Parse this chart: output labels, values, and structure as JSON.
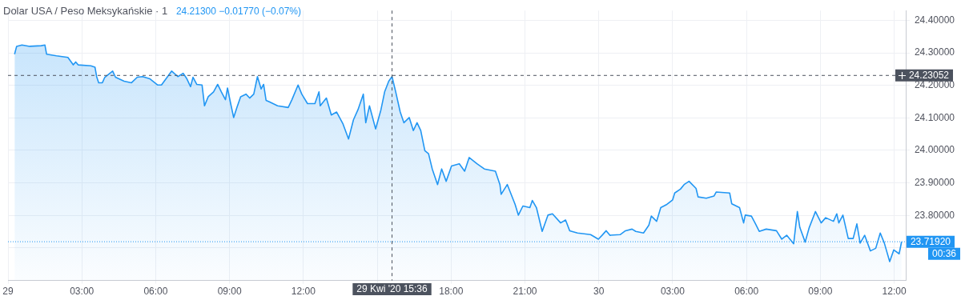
{
  "chart_data": {
    "type": "area",
    "title": "Dolar USA / Peso Meksykańskie · 1",
    "subtitle": "24.21300 −0.01770 (−0.07%)",
    "series": [
      {
        "color": "#2196f3",
        "x": [
          "2020-04-29T00:16",
          "2020-04-29T00:21",
          "2020-04-29T00:34",
          "2020-04-29T00:53",
          "2020-04-29T01:21",
          "2020-04-29T01:30",
          "2020-04-29T01:34",
          "2020-04-29T01:58",
          "2020-04-29T02:26",
          "2020-04-29T02:39",
          "2020-04-29T02:45",
          "2020-04-29T02:51",
          "2020-04-29T03:22",
          "2020-04-29T03:32",
          "2020-04-29T03:36",
          "2020-04-29T03:41",
          "2020-04-29T03:50",
          "2020-04-29T03:56",
          "2020-04-29T04:15",
          "2020-04-29T04:22",
          "2020-04-29T04:43",
          "2020-04-29T05:01",
          "2020-04-29T05:15",
          "2020-04-29T05:28",
          "2020-04-29T05:46",
          "2020-04-29T06:05",
          "2020-04-29T06:14",
          "2020-04-29T06:29",
          "2020-04-29T06:39",
          "2020-04-29T06:54",
          "2020-04-29T07:07",
          "2020-04-29T07:16",
          "2020-04-29T07:25",
          "2020-04-29T07:31",
          "2020-04-29T07:40",
          "2020-04-29T07:53",
          "2020-04-29T07:59",
          "2020-04-29T08:08",
          "2020-04-29T08:21",
          "2020-04-29T08:31",
          "2020-04-29T08:40",
          "2020-04-29T08:50",
          "2020-04-29T08:55",
          "2020-04-29T09:03",
          "2020-04-29T09:10",
          "2020-04-29T09:18",
          "2020-04-29T09:27",
          "2020-04-29T09:40",
          "2020-04-29T09:49",
          "2020-04-29T09:59",
          "2020-04-29T10:08",
          "2020-04-29T10:17",
          "2020-04-29T10:23",
          "2020-04-29T10:29",
          "2020-04-29T10:38",
          "2020-04-29T10:57",
          "2020-04-29T11:23",
          "2020-04-29T11:32",
          "2020-04-29T11:47",
          "2020-04-29T11:56",
          "2020-04-29T12:10",
          "2020-04-29T12:28",
          "2020-04-29T12:38",
          "2020-04-29T12:41",
          "2020-04-29T12:56",
          "2020-04-29T13:08",
          "2020-04-29T13:21",
          "2020-04-29T13:36",
          "2020-04-29T13:50",
          "2020-04-29T14:02",
          "2020-04-29T14:13",
          "2020-04-29T14:26",
          "2020-04-29T14:32",
          "2020-04-29T14:41",
          "2020-04-29T14:56",
          "2020-04-29T15:09",
          "2020-04-29T15:18",
          "2020-04-29T15:28",
          "2020-04-29T15:36",
          "2020-04-29T15:45",
          "2020-04-29T15:56",
          "2020-04-29T16:05",
          "2020-04-29T16:18",
          "2020-04-29T16:28",
          "2020-04-29T16:37",
          "2020-04-29T16:46",
          "2020-04-29T16:56",
          "2020-04-29T17:05",
          "2020-04-29T17:14",
          "2020-04-29T17:27",
          "2020-04-29T17:37",
          "2020-04-29T17:48",
          "2020-04-29T18:01",
          "2020-04-29T18:20",
          "2020-04-29T18:33",
          "2020-04-29T18:44",
          "2020-04-29T19:03",
          "2020-04-29T19:21",
          "2020-04-29T19:48",
          "2020-04-29T19:59",
          "2020-04-29T20:02",
          "2020-04-29T20:17",
          "2020-04-29T20:36",
          "2020-04-29T20:44",
          "2020-04-29T20:55",
          "2020-04-29T21:12",
          "2020-04-29T21:18",
          "2020-04-29T21:28",
          "2020-04-29T21:42",
          "2020-04-29T21:56",
          "2020-04-29T22:07",
          "2020-04-29T22:27",
          "2020-04-29T22:39",
          "2020-04-29T22:49",
          "2020-04-29T23:08",
          "2020-04-29T23:40",
          "2020-04-29T23:59",
          "2020-04-30T00:08",
          "2020-04-30T00:18",
          "2020-04-30T00:27",
          "2020-04-30T00:52",
          "2020-04-30T01:05",
          "2020-04-30T01:21",
          "2020-04-30T01:30",
          "2020-04-30T01:49",
          "2020-04-30T02:02",
          "2020-04-30T02:08",
          "2020-04-30T02:21",
          "2020-04-30T02:31",
          "2020-04-30T02:46",
          "2020-04-30T03:00",
          "2020-04-30T03:05",
          "2020-04-30T03:19",
          "2020-04-30T03:28",
          "2020-04-30T03:40",
          "2020-04-30T03:57",
          "2020-04-30T04:02",
          "2020-04-30T04:22",
          "2020-04-30T04:41",
          "2020-04-30T04:46",
          "2020-04-30T05:19",
          "2020-04-30T05:24",
          "2020-04-30T05:43",
          "2020-04-30T05:53",
          "2020-04-30T05:57",
          "2020-04-30T06:12",
          "2020-04-30T06:22",
          "2020-04-30T06:31",
          "2020-04-30T06:48",
          "2020-04-30T07:13",
          "2020-04-30T07:26",
          "2020-04-30T07:38",
          "2020-04-30T07:55",
          "2020-04-30T08:04",
          "2020-04-30T08:10",
          "2020-04-30T08:23",
          "2020-04-30T08:33",
          "2020-04-30T08:48",
          "2020-04-30T09:02",
          "2020-04-30T09:13",
          "2020-04-30T09:32",
          "2020-04-30T09:40",
          "2020-04-30T09:45",
          "2020-04-30T09:55",
          "2020-04-30T10:08",
          "2020-04-30T10:20",
          "2020-04-30T10:29",
          "2020-04-30T10:37",
          "2020-04-30T10:48",
          "2020-04-30T11:02",
          "2020-04-30T11:15",
          "2020-04-30T11:26",
          "2020-04-30T11:36",
          "2020-04-30T11:49",
          "2020-04-30T11:59",
          "2020-04-30T12:12",
          "2020-04-30T12:18"
        ],
        "values": [
          24.296,
          24.32,
          24.324,
          24.32,
          24.322,
          24.324,
          24.296,
          24.291,
          24.286,
          24.263,
          24.272,
          24.263,
          24.26,
          24.256,
          24.227,
          24.208,
          24.208,
          24.225,
          24.244,
          24.225,
          24.213,
          24.208,
          24.225,
          24.227,
          24.22,
          24.201,
          24.201,
          24.227,
          24.244,
          24.227,
          24.237,
          24.22,
          24.196,
          24.225,
          24.203,
          24.201,
          24.137,
          24.165,
          24.18,
          24.203,
          24.18,
          24.156,
          24.192,
          24.142,
          24.101,
          24.132,
          24.165,
          24.173,
          24.161,
          24.173,
          24.227,
          24.189,
          24.203,
          24.154,
          24.149,
          24.137,
          24.132,
          24.156,
          24.201,
          24.173,
          24.144,
          24.144,
          24.18,
          24.137,
          24.161,
          24.109,
          24.118,
          24.083,
          24.035,
          24.094,
          24.125,
          24.173,
          24.085,
          24.137,
          24.066,
          24.125,
          24.18,
          24.213,
          24.227,
          24.18,
          24.118,
          24.085,
          24.101,
          24.061,
          24.085,
          24.061,
          23.999,
          23.99,
          23.943,
          23.895,
          23.943,
          23.905,
          23.952,
          23.959,
          23.936,
          23.978,
          23.959,
          23.943,
          23.936,
          23.895,
          23.865,
          23.895,
          23.834,
          23.801,
          23.829,
          23.824,
          23.846,
          23.824,
          23.751,
          23.801,
          23.805,
          23.777,
          23.786,
          23.753,
          23.746,
          23.741,
          23.727,
          23.739,
          23.753,
          23.739,
          23.741,
          23.753,
          23.758,
          23.751,
          23.746,
          23.77,
          23.798,
          23.782,
          23.824,
          23.834,
          23.848,
          23.869,
          23.881,
          23.895,
          23.905,
          23.883,
          23.857,
          23.853,
          23.86,
          23.872,
          23.869,
          23.836,
          23.824,
          23.777,
          23.801,
          23.798,
          23.774,
          23.751,
          23.758,
          23.753,
          23.727,
          23.739,
          23.713,
          23.812,
          23.763,
          23.718,
          23.763,
          23.812,
          23.777,
          23.793,
          23.782,
          23.805,
          23.777,
          23.801,
          23.729,
          23.729,
          23.774,
          23.715,
          23.739,
          23.691,
          23.699,
          23.746,
          23.715,
          23.658,
          23.694,
          23.682,
          23.719
        ]
      }
    ],
    "xlim": [
      "2020-04-29T00:00",
      "2020-04-30T12:30"
    ],
    "xticks": [
      {
        "value": "2020-04-29T00:00",
        "label": "29"
      },
      {
        "value": "2020-04-29T03:00",
        "label": "03:00"
      },
      {
        "value": "2020-04-29T06:00",
        "label": "06:00"
      },
      {
        "value": "2020-04-29T09:00",
        "label": "09:00"
      },
      {
        "value": "2020-04-29T12:00",
        "label": "12:00"
      },
      {
        "value": "2020-04-29T15:00",
        "label": null
      },
      {
        "value": "2020-04-29T18:00",
        "label": "18:00"
      },
      {
        "value": "2020-04-29T21:00",
        "label": "21:00"
      },
      {
        "value": "2020-04-30T00:00",
        "label": "30"
      },
      {
        "value": "2020-04-30T03:00",
        "label": "03:00"
      },
      {
        "value": "2020-04-30T06:00",
        "label": "06:00"
      },
      {
        "value": "2020-04-30T09:00",
        "label": "09:00"
      },
      {
        "value": "2020-04-30T12:00",
        "label": "12:00"
      }
    ],
    "ylim": [
      23.6,
      24.43
    ],
    "yticks": [
      {
        "value": 23.7,
        "label": null
      },
      {
        "value": 23.8,
        "label": "23.80000"
      },
      {
        "value": 23.9,
        "label": "23.90000"
      },
      {
        "value": 24.0,
        "label": "24.00000"
      },
      {
        "value": 24.1,
        "label": "24.10000"
      },
      {
        "value": 24.2,
        "label": "24.20000"
      },
      {
        "value": 24.3,
        "label": "24.30000"
      },
      {
        "value": 24.4,
        "label": "24.40000"
      }
    ],
    "ref_lines": [
      {
        "axis": "y",
        "value": 24.23052,
        "label": "24.23052",
        "color": "#4c525e",
        "line_style": "dashed"
      },
      {
        "axis": "x",
        "value": "2020-04-29T15:36",
        "label": "29 Kwi '20 15:36",
        "color": "#4c525e",
        "line_style": "dashed"
      },
      {
        "axis": "y",
        "value": 23.7192,
        "label": "23.71920",
        "color": "#2196f3",
        "line_style": "dotted"
      }
    ],
    "annotations": [
      "00:36"
    ],
    "grid": true,
    "legend": false
  }
}
